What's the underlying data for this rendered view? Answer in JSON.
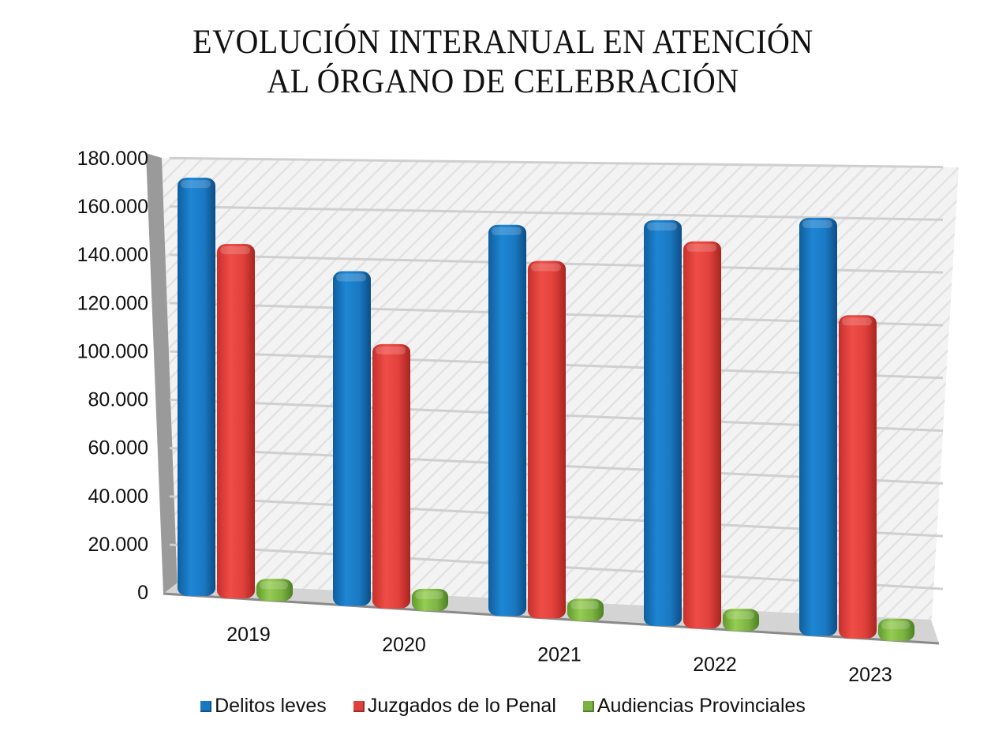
{
  "chart_data": {
    "type": "bar",
    "title": "EVOLUCIÓN INTERANUAL EN ATENCIÓN AL ÓRGANO DE CELEBRACIÓN",
    "title_lines": [
      "EVOLUCIÓN INTERANUAL EN ATENCIÓN",
      "AL ÓRGANO DE CELEBRACIÓN"
    ],
    "xlabel": "",
    "ylabel": "",
    "categories": [
      "2019",
      "2020",
      "2021",
      "2022",
      "2023"
    ],
    "series": [
      {
        "name": "Delitos leves",
        "color": "#1a78c2",
        "values": [
          172000,
          135000,
          155000,
          158000,
          160000
        ]
      },
      {
        "name": "Juzgados de lo Penal",
        "color": "#e0403b",
        "values": [
          145000,
          106000,
          141000,
          150000,
          123000
        ]
      },
      {
        "name": "Audiencias Provinciales",
        "color": "#7cb342",
        "values": [
          6000,
          5000,
          5000,
          5000,
          4500
        ]
      }
    ],
    "ylim": [
      0,
      180000
    ],
    "yticks": [
      0,
      20000,
      40000,
      60000,
      80000,
      100000,
      120000,
      140000,
      160000,
      180000
    ],
    "ytick_labels": [
      "0",
      "20.000",
      "40.000",
      "60.000",
      "80.000",
      "100.000",
      "120.000",
      "140.000",
      "160.000",
      "180.000"
    ],
    "grid": true,
    "legend_position": "bottom",
    "style": "3d-cylinder"
  }
}
